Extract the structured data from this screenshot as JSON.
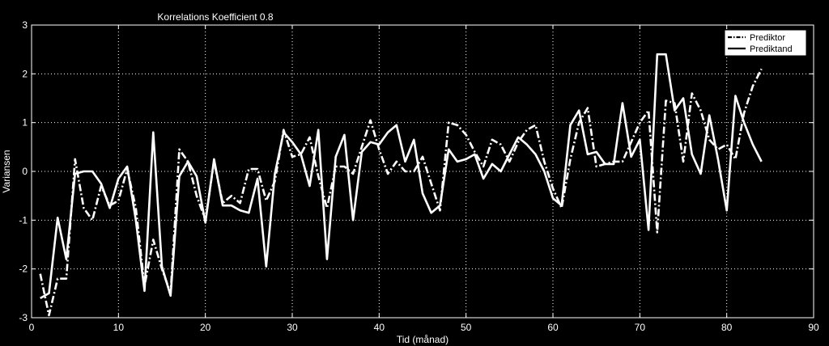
{
  "chart_data": {
    "type": "line",
    "title": "Korrelations Koefficient 0.8",
    "xlabel": "Tid (månad)",
    "ylabel": "Variansen",
    "xlim": [
      0,
      90
    ],
    "ylim": [
      -3,
      3
    ],
    "xticks": [
      0,
      10,
      20,
      30,
      40,
      50,
      60,
      70,
      80,
      90
    ],
    "yticks": [
      -3,
      -2,
      -1,
      0,
      1,
      2,
      3
    ],
    "grid": true,
    "background": "#000000",
    "axes_color": "#ffffff",
    "legend_position": "top-right",
    "series": [
      {
        "name": "Prediktor",
        "style": "dash-dot",
        "x": [
          1,
          2,
          3,
          4,
          5,
          6,
          7,
          8,
          9,
          10,
          11,
          12,
          13,
          14,
          15,
          16,
          17,
          18,
          19,
          20,
          21,
          22,
          23,
          24,
          25,
          26,
          27,
          28,
          29,
          30,
          31,
          32,
          33,
          34,
          35,
          36,
          37,
          38,
          39,
          40,
          41,
          42,
          43,
          44,
          45,
          46,
          47,
          48,
          49,
          50,
          51,
          52,
          53,
          54,
          55,
          56,
          57,
          58,
          59,
          60,
          61,
          62,
          63,
          64,
          65,
          66,
          67,
          68,
          69,
          70,
          71,
          72,
          73,
          74,
          75,
          76,
          77,
          78,
          79,
          80,
          81,
          82,
          83,
          84
        ],
        "values": [
          -2.1,
          -2.95,
          -2.2,
          -2.2,
          0.25,
          -0.75,
          -1.0,
          -0.3,
          -0.7,
          -0.6,
          0.05,
          -0.75,
          -2.35,
          -1.4,
          -2.0,
          -2.5,
          0.45,
          0.2,
          -0.5,
          -1.0,
          0.2,
          -0.65,
          -0.5,
          -0.65,
          0.05,
          0.05,
          -0.6,
          -0.2,
          0.85,
          0.3,
          0.35,
          0.7,
          -0.1,
          -0.75,
          0.1,
          0.1,
          -0.05,
          0.5,
          1.05,
          0.45,
          -0.05,
          0.2,
          0.0,
          0.0,
          0.3,
          -0.25,
          -0.8,
          1.0,
          0.95,
          0.75,
          0.4,
          0.1,
          0.65,
          0.55,
          0.2,
          0.6,
          0.85,
          0.95,
          0.2,
          -0.35,
          -0.75,
          0.25,
          1.0,
          1.3,
          0.1,
          0.15,
          0.2,
          0.2,
          0.6,
          1.0,
          1.25,
          -1.25,
          1.45,
          1.4,
          0.2,
          1.6,
          1.25,
          0.65,
          0.45,
          0.55,
          0.25,
          1.2,
          1.75,
          2.1
        ]
      },
      {
        "name": "Prediktand",
        "style": "solid",
        "x": [
          1,
          2,
          3,
          4,
          5,
          6,
          7,
          8,
          9,
          10,
          11,
          12,
          13,
          14,
          15,
          16,
          17,
          18,
          19,
          20,
          21,
          22,
          23,
          24,
          25,
          26,
          27,
          28,
          29,
          30,
          31,
          32,
          33,
          34,
          35,
          36,
          37,
          38,
          39,
          40,
          41,
          42,
          43,
          44,
          45,
          46,
          47,
          48,
          49,
          50,
          51,
          52,
          53,
          54,
          55,
          56,
          57,
          58,
          59,
          60,
          61,
          62,
          63,
          64,
          65,
          66,
          67,
          68,
          69,
          70,
          71,
          72,
          73,
          74,
          75,
          76,
          77,
          78,
          79,
          80,
          81,
          82,
          83,
          84
        ],
        "values": [
          -2.6,
          -2.5,
          -0.95,
          -1.8,
          -0.05,
          0.0,
          0.0,
          -0.25,
          -0.75,
          -0.15,
          0.1,
          -1.0,
          -2.45,
          0.8,
          -1.95,
          -2.55,
          -0.1,
          0.2,
          -0.1,
          -1.05,
          0.25,
          -0.7,
          -0.7,
          -0.8,
          -0.85,
          -0.15,
          -1.95,
          -0.05,
          0.8,
          0.6,
          0.35,
          -0.3,
          0.85,
          -1.8,
          0.3,
          0.75,
          -1.0,
          0.4,
          0.6,
          0.55,
          0.8,
          0.95,
          0.2,
          0.65,
          -0.45,
          -0.85,
          -0.7,
          0.45,
          0.2,
          0.25,
          0.35,
          -0.15,
          0.15,
          0.0,
          0.35,
          0.7,
          0.55,
          0.35,
          0.0,
          -0.55,
          -0.7,
          0.95,
          1.25,
          0.35,
          0.4,
          0.15,
          0.15,
          1.4,
          0.3,
          0.65,
          -1.2,
          2.4,
          2.4,
          1.25,
          1.5,
          0.35,
          -0.05,
          1.15,
          0.25,
          -0.8,
          1.55,
          1.0,
          0.55,
          0.2
        ]
      }
    ]
  }
}
